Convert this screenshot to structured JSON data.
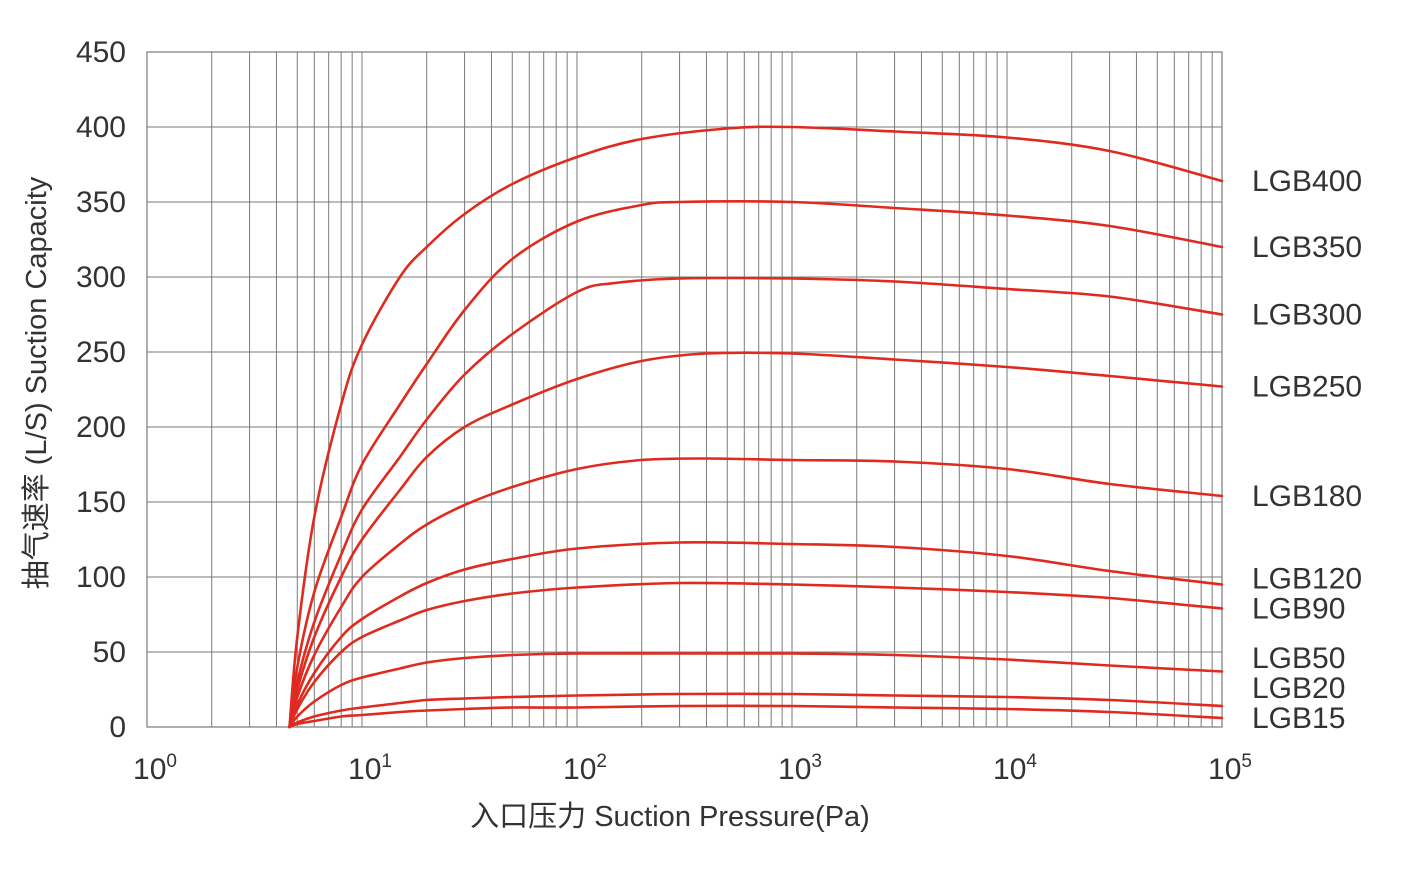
{
  "chart_data": {
    "type": "line",
    "xscale": "log",
    "xlim": [
      1,
      100000
    ],
    "ylim": [
      0,
      450
    ],
    "grid": true,
    "legend_placement": "right (direct labels at line ends)",
    "xlabel": "入口压力 Suction Pressure(Pa)",
    "ylabel": "抽气速率 (L/S) Suction Capacity",
    "x_ticks": [
      {
        "value": 1,
        "base": "10",
        "exp": "0"
      },
      {
        "value": 10,
        "base": "10",
        "exp": "1"
      },
      {
        "value": 100,
        "base": "10",
        "exp": "2"
      },
      {
        "value": 1000,
        "base": "10",
        "exp": "3"
      },
      {
        "value": 10000,
        "base": "10",
        "exp": "4"
      },
      {
        "value": 100000,
        "base": "10",
        "exp": "5"
      }
    ],
    "y_ticks": [
      {
        "value": 0,
        "label": "0"
      },
      {
        "value": 50,
        "label": "50"
      },
      {
        "value": 100,
        "label": "100"
      },
      {
        "value": 150,
        "label": "150"
      },
      {
        "value": 200,
        "label": "200"
      },
      {
        "value": 250,
        "label": "250"
      },
      {
        "value": 300,
        "label": "300"
      },
      {
        "value": 350,
        "label": "350"
      },
      {
        "value": 400,
        "label": "400"
      },
      {
        "value": 450,
        "label": "450"
      }
    ],
    "line_color": "#e02a1f",
    "grid_color": "#7a7a7a",
    "series": [
      {
        "name": "LGB400",
        "points": [
          [
            4.6,
            0
          ],
          [
            5,
            60
          ],
          [
            6,
            140
          ],
          [
            8,
            215
          ],
          [
            10,
            255
          ],
          [
            15,
            300
          ],
          [
            20,
            320
          ],
          [
            30,
            342
          ],
          [
            50,
            362
          ],
          [
            100,
            380
          ],
          [
            200,
            392
          ],
          [
            500,
            399
          ],
          [
            1000,
            400
          ],
          [
            3000,
            397
          ],
          [
            10000,
            393
          ],
          [
            30000,
            384
          ],
          [
            100000,
            364
          ]
        ]
      },
      {
        "name": "LGB350",
        "points": [
          [
            4.6,
            0
          ],
          [
            5,
            40
          ],
          [
            6,
            90
          ],
          [
            8,
            140
          ],
          [
            10,
            175
          ],
          [
            15,
            215
          ],
          [
            20,
            242
          ],
          [
            30,
            278
          ],
          [
            50,
            312
          ],
          [
            100,
            337
          ],
          [
            200,
            348
          ],
          [
            300,
            350
          ],
          [
            1000,
            350
          ],
          [
            3000,
            346
          ],
          [
            10000,
            341
          ],
          [
            30000,
            334
          ],
          [
            100000,
            320
          ]
        ]
      },
      {
        "name": "LGB300",
        "points": [
          [
            4.6,
            0
          ],
          [
            5,
            30
          ],
          [
            6,
            70
          ],
          [
            8,
            115
          ],
          [
            10,
            145
          ],
          [
            15,
            180
          ],
          [
            20,
            205
          ],
          [
            30,
            235
          ],
          [
            50,
            262
          ],
          [
            100,
            290
          ],
          [
            150,
            296
          ],
          [
            300,
            299
          ],
          [
            1000,
            299
          ],
          [
            3000,
            297
          ],
          [
            10000,
            292
          ],
          [
            30000,
            287
          ],
          [
            100000,
            275
          ]
        ]
      },
      {
        "name": "LGB250",
        "points": [
          [
            4.6,
            0
          ],
          [
            5,
            25
          ],
          [
            6,
            60
          ],
          [
            8,
            100
          ],
          [
            10,
            125
          ],
          [
            15,
            158
          ],
          [
            20,
            180
          ],
          [
            30,
            200
          ],
          [
            50,
            215
          ],
          [
            100,
            232
          ],
          [
            200,
            244
          ],
          [
            400,
            249
          ],
          [
            1000,
            249
          ],
          [
            3000,
            245
          ],
          [
            10000,
            240
          ],
          [
            30000,
            234
          ],
          [
            100000,
            227
          ]
        ]
      },
      {
        "name": "LGB180",
        "points": [
          [
            4.6,
            0
          ],
          [
            5,
            20
          ],
          [
            6,
            48
          ],
          [
            8,
            80
          ],
          [
            10,
            100
          ],
          [
            15,
            122
          ],
          [
            20,
            135
          ],
          [
            30,
            148
          ],
          [
            50,
            160
          ],
          [
            100,
            172
          ],
          [
            200,
            178
          ],
          [
            400,
            179
          ],
          [
            1000,
            178
          ],
          [
            3000,
            177
          ],
          [
            10000,
            172
          ],
          [
            30000,
            162
          ],
          [
            100000,
            154
          ]
        ]
      },
      {
        "name": "LGB120",
        "points": [
          [
            4.6,
            0
          ],
          [
            5,
            15
          ],
          [
            6,
            36
          ],
          [
            8,
            60
          ],
          [
            10,
            72
          ],
          [
            15,
            87
          ],
          [
            20,
            96
          ],
          [
            30,
            105
          ],
          [
            50,
            112
          ],
          [
            100,
            119
          ],
          [
            300,
            123
          ],
          [
            1000,
            122
          ],
          [
            3000,
            120
          ],
          [
            10000,
            114
          ],
          [
            30000,
            104
          ],
          [
            100000,
            95
          ]
        ]
      },
      {
        "name": "LGB90",
        "points": [
          [
            4.6,
            0
          ],
          [
            5,
            12
          ],
          [
            6,
            30
          ],
          [
            8,
            50
          ],
          [
            10,
            60
          ],
          [
            15,
            71
          ],
          [
            20,
            78
          ],
          [
            30,
            84
          ],
          [
            50,
            89
          ],
          [
            100,
            93
          ],
          [
            300,
            96
          ],
          [
            1000,
            95
          ],
          [
            3000,
            93
          ],
          [
            10000,
            90
          ],
          [
            30000,
            86
          ],
          [
            100000,
            79
          ]
        ]
      },
      {
        "name": "LGB50",
        "points": [
          [
            4.6,
            0
          ],
          [
            5,
            7
          ],
          [
            6,
            17
          ],
          [
            8,
            28
          ],
          [
            10,
            33
          ],
          [
            15,
            39
          ],
          [
            20,
            43
          ],
          [
            30,
            46
          ],
          [
            50,
            48
          ],
          [
            100,
            49
          ],
          [
            300,
            49
          ],
          [
            1000,
            49
          ],
          [
            3000,
            48
          ],
          [
            10000,
            45
          ],
          [
            30000,
            41
          ],
          [
            100000,
            37
          ]
        ]
      },
      {
        "name": "LGB20",
        "points": [
          [
            4.6,
            0
          ],
          [
            5,
            3
          ],
          [
            6,
            7
          ],
          [
            8,
            11
          ],
          [
            10,
            13
          ],
          [
            15,
            16
          ],
          [
            20,
            18
          ],
          [
            30,
            19
          ],
          [
            50,
            20
          ],
          [
            100,
            21
          ],
          [
            300,
            22
          ],
          [
            1000,
            22
          ],
          [
            3000,
            21
          ],
          [
            10000,
            20
          ],
          [
            30000,
            18
          ],
          [
            100000,
            14
          ]
        ]
      },
      {
        "name": "LGB15",
        "points": [
          [
            4.6,
            0
          ],
          [
            5,
            2
          ],
          [
            6,
            4
          ],
          [
            8,
            7
          ],
          [
            10,
            8
          ],
          [
            15,
            10
          ],
          [
            20,
            11
          ],
          [
            30,
            12
          ],
          [
            50,
            13
          ],
          [
            100,
            13
          ],
          [
            300,
            14
          ],
          [
            1000,
            14
          ],
          [
            3000,
            13
          ],
          [
            10000,
            12
          ],
          [
            30000,
            10
          ],
          [
            100000,
            6
          ]
        ]
      }
    ]
  }
}
